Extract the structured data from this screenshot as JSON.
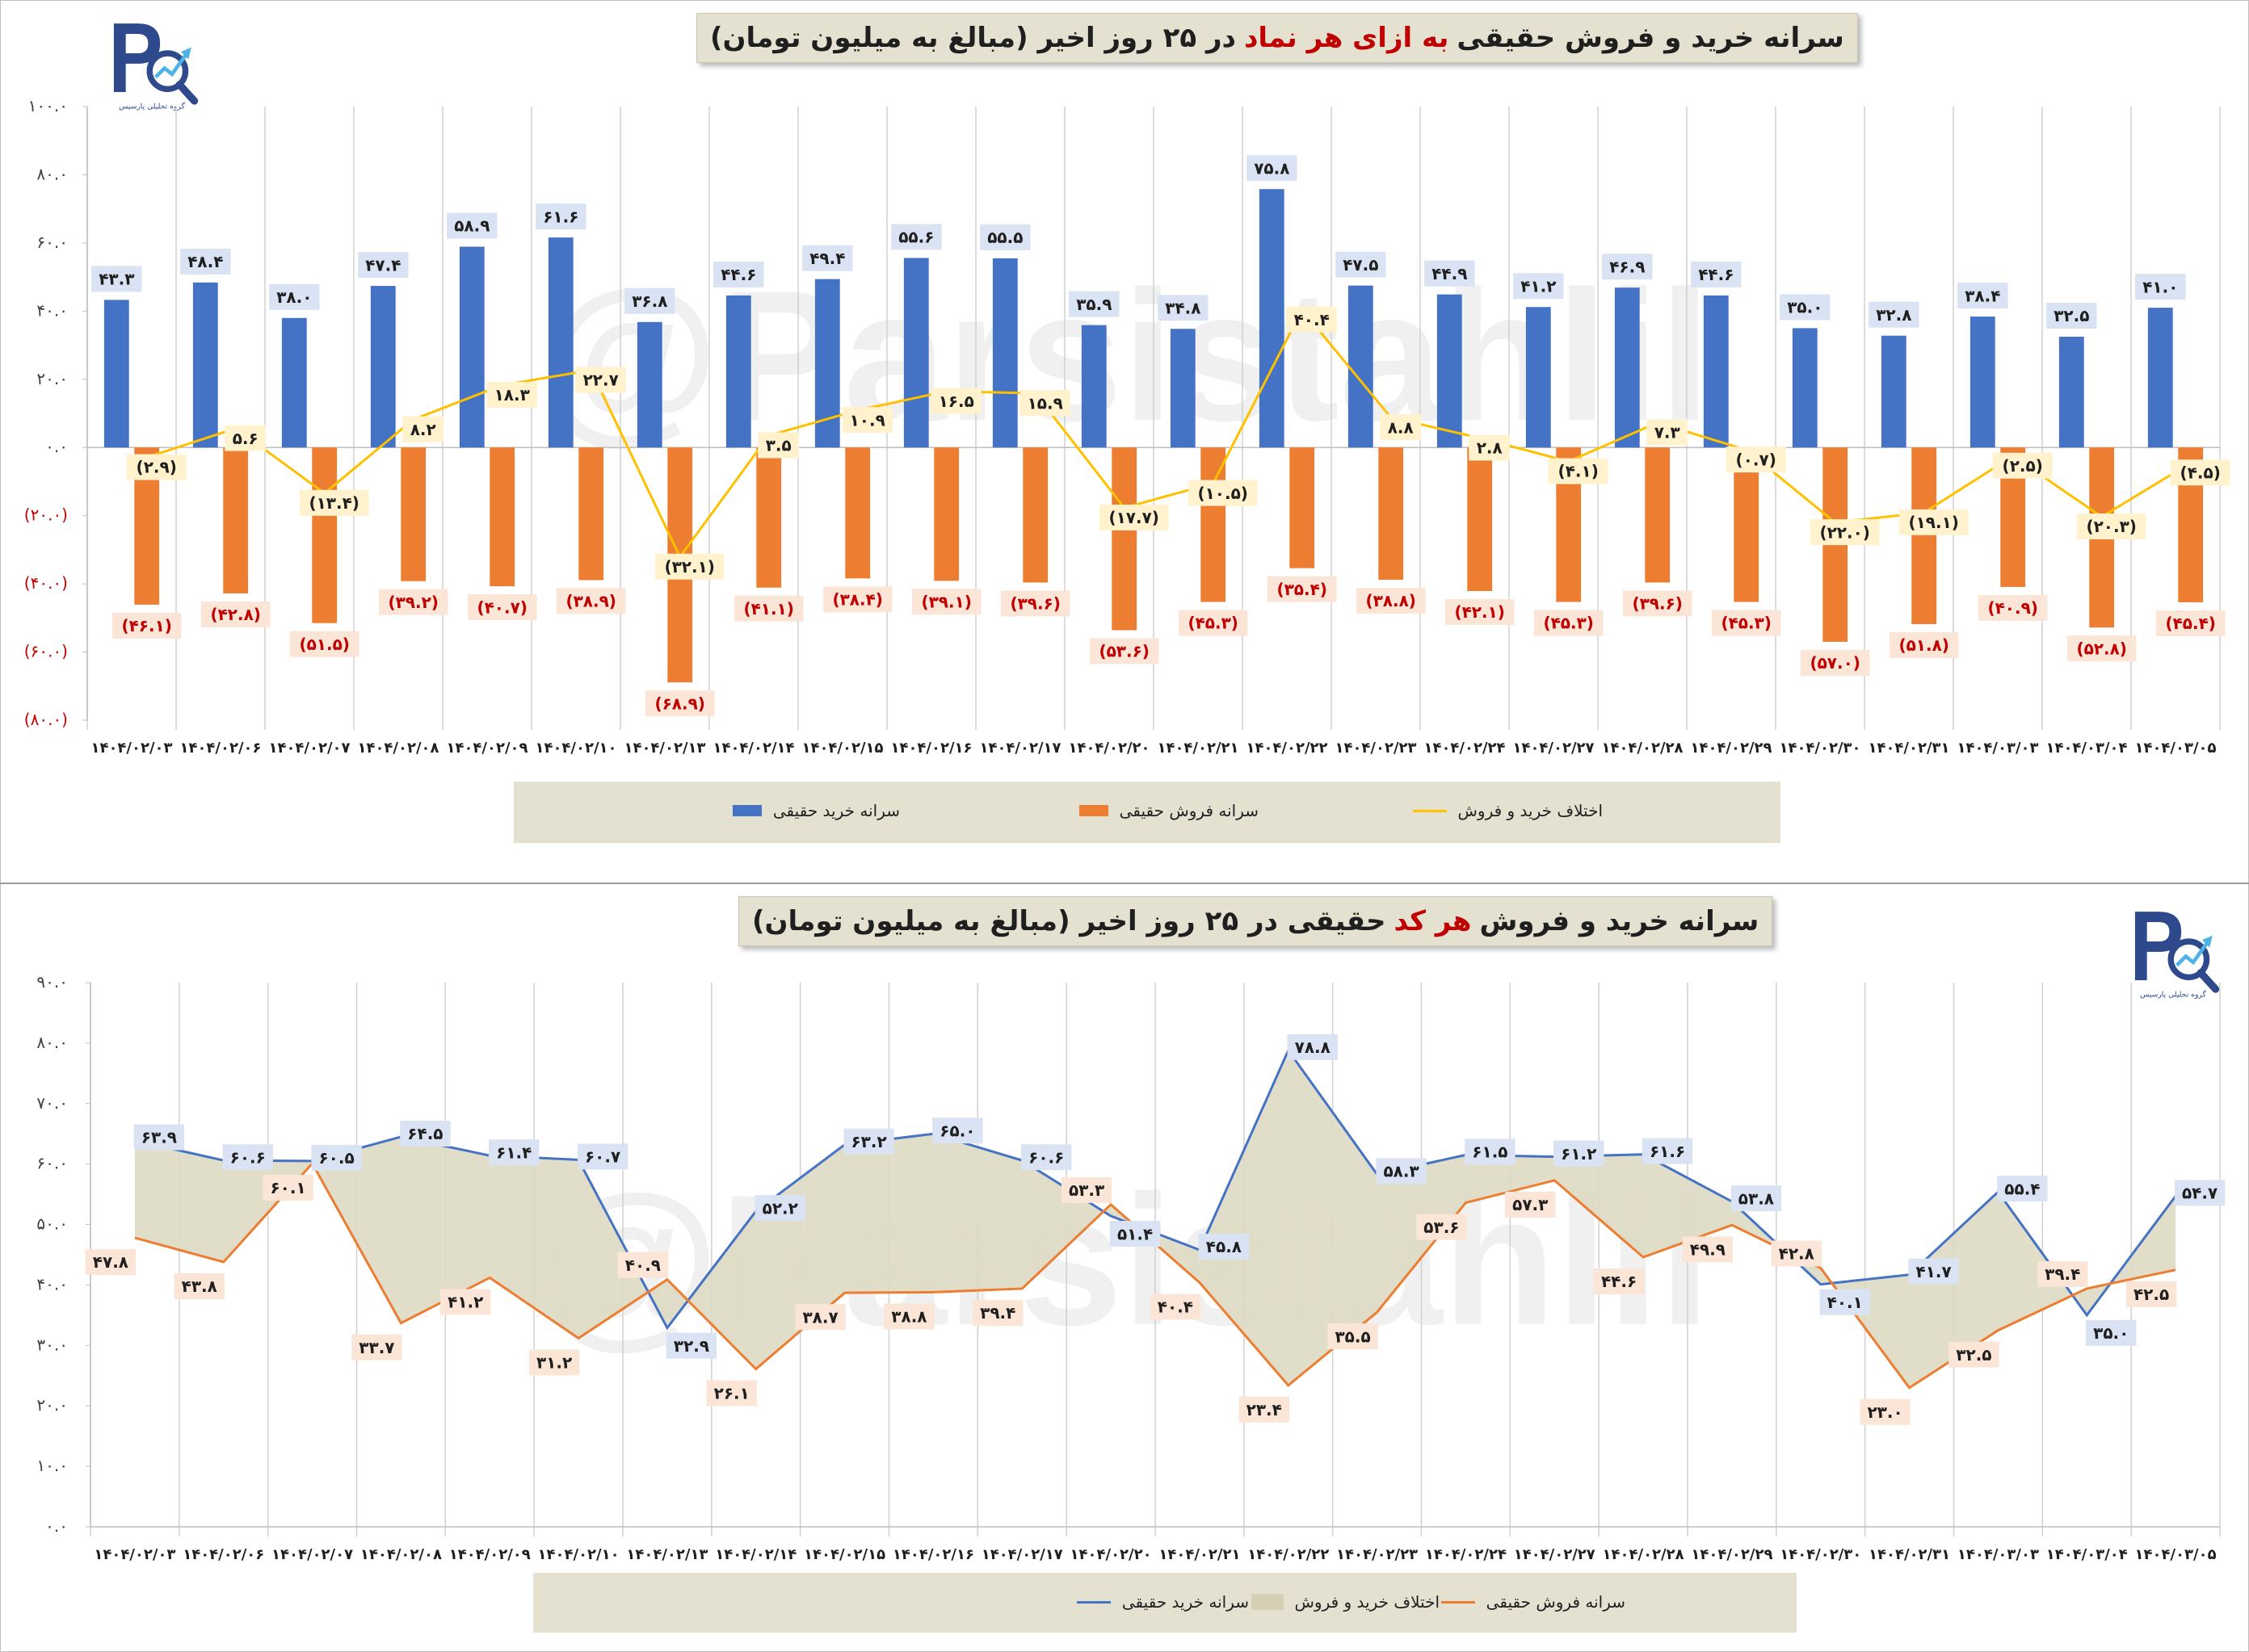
{
  "dates": [
    "۱۴۰۴/۰۲/۰۳",
    "۱۴۰۴/۰۲/۰۶",
    "۱۴۰۴/۰۲/۰۷",
    "۱۴۰۴/۰۲/۰۸",
    "۱۴۰۴/۰۲/۰۹",
    "۱۴۰۴/۰۲/۱۰",
    "۱۴۰۴/۰۲/۱۳",
    "۱۴۰۴/۰۲/۱۴",
    "۱۴۰۴/۰۲/۱۵",
    "۱۴۰۴/۰۲/۱۶",
    "۱۴۰۴/۰۲/۱۷",
    "۱۴۰۴/۰۲/۲۰",
    "۱۴۰۴/۰۲/۲۱",
    "۱۴۰۴/۰۲/۲۲",
    "۱۴۰۴/۰۲/۲۳",
    "۱۴۰۴/۰۲/۲۴",
    "۱۴۰۴/۰۲/۲۷",
    "۱۴۰۴/۰۲/۲۸",
    "۱۴۰۴/۰۲/۲۹",
    "۱۴۰۴/۰۲/۳۰",
    "۱۴۰۴/۰۲/۳۱",
    "۱۴۰۴/۰۳/۰۳",
    "۱۴۰۴/۰۳/۰۴",
    "۱۴۰۴/۰۳/۰۵"
  ],
  "watermark": "@Parsistahlil",
  "logo_text": "گروه تحلیلی پارسیس",
  "colors": {
    "buy": "#4472c4",
    "sell": "#ed7d31",
    "diff": "#ffc000",
    "area": "#ddd9c3",
    "label_box": "#dae3f3",
    "diff_box": "#fff2cc",
    "sell_box": "#fbe5d6",
    "sell_text": "#c00000",
    "neg_tick": "#c00000"
  },
  "chart1": {
    "title_parts": [
      "سرانه خرید و فروش حقیقی",
      "به ازای هر نماد",
      "در ۲۵ روز اخیر (مبالغ به میلیون تومان)"
    ],
    "legend": [
      "سرانه خرید حقیقی",
      "سرانه فروش حقیقی",
      "اختلاف خرید و فروش"
    ]
  },
  "chart2": {
    "title_parts": [
      "سرانه خرید و فروش",
      "هر کد",
      "حقیقی در ۲۵ روز اخیر (مبالغ به میلیون تومان)"
    ],
    "legend": [
      "اختلاف خرید و فروش",
      "سرانه خرید حقیقی",
      "سرانه فروش حقیقی"
    ]
  },
  "chart_data": [
    {
      "type": "bar",
      "title": "سرانه خرید و فروش حقیقی به ازای هر نماد در ۲۵ روز اخیر (مبالغ به میلیون تومان)",
      "ylim": [
        -80,
        100
      ],
      "y_ticks": [
        -80,
        -60,
        -40,
        -20,
        0,
        20,
        40,
        60,
        80,
        100
      ],
      "y_tick_labels": [
        "(۸۰.۰)",
        "(۶۰.۰)",
        "(۴۰.۰)",
        "(۲۰.۰)",
        "۰.۰",
        "۲۰.۰",
        "۴۰.۰",
        "۶۰.۰",
        "۸۰.۰",
        "۱۰۰.۰"
      ],
      "grid": "vertical",
      "legend_position": "bottom",
      "series": [
        {
          "name": "سرانه خرید حقیقی",
          "kind": "bar",
          "values": [
            43.3,
            48.4,
            38.0,
            47.4,
            58.9,
            61.6,
            36.8,
            44.6,
            49.4,
            55.6,
            55.5,
            35.9,
            34.8,
            75.8,
            47.5,
            44.9,
            41.2,
            46.9,
            44.6,
            35.0,
            32.8,
            38.4,
            32.5,
            41.0
          ],
          "labels": [
            "۴۳.۳",
            "۴۸.۴",
            "۳۸.۰",
            "۴۷.۴",
            "۵۸.۹",
            "۶۱.۶",
            "۳۶.۸",
            "۴۴.۶",
            "۴۹.۴",
            "۵۵.۶",
            "۵۵.۵",
            "۳۵.۹",
            "۳۴.۸",
            "۷۵.۸",
            "۴۷.۵",
            "۴۴.۹",
            "۴۱.۲",
            "۴۶.۹",
            "۴۴.۶",
            "۳۵.۰",
            "۳۲.۸",
            "۳۸.۴",
            "۳۲.۵",
            "۴۱.۰"
          ]
        },
        {
          "name": "سرانه فروش حقیقی",
          "kind": "bar",
          "values": [
            -46.1,
            -42.8,
            -51.5,
            -39.2,
            -40.7,
            -38.9,
            -68.9,
            -41.1,
            -38.4,
            -39.1,
            -39.6,
            -53.6,
            -45.3,
            -35.4,
            -38.8,
            -42.1,
            -45.3,
            -39.6,
            -45.3,
            -57.0,
            -51.8,
            -40.9,
            -52.8,
            -45.4
          ],
          "labels": [
            "(۴۶.۱)",
            "(۴۲.۸)",
            "(۵۱.۵)",
            "(۳۹.۲)",
            "(۴۰.۷)",
            "(۳۸.۹)",
            "(۶۸.۹)",
            "(۴۱.۱)",
            "(۳۸.۴)",
            "(۳۹.۱)",
            "(۳۹.۶)",
            "(۵۳.۶)",
            "(۴۵.۳)",
            "(۳۵.۴)",
            "(۳۸.۸)",
            "(۴۲.۱)",
            "(۴۵.۳)",
            "(۳۹.۶)",
            "(۴۵.۳)",
            "(۵۷.۰)",
            "(۵۱.۸)",
            "(۴۰.۹)",
            "(۵۲.۸)",
            "(۴۵.۴)"
          ]
        },
        {
          "name": "اختلاف خرید و فروش",
          "kind": "line",
          "values": [
            -2.9,
            5.6,
            -13.4,
            8.2,
            18.3,
            22.7,
            -32.1,
            3.5,
            10.9,
            16.5,
            15.9,
            -17.7,
            -10.5,
            40.4,
            8.8,
            2.8,
            -4.1,
            7.3,
            -0.7,
            -22.0,
            -19.1,
            -2.5,
            -20.3,
            -4.5
          ],
          "labels": [
            "(۲.۹)",
            "۵.۶",
            "(۱۳.۴)",
            "۸.۲",
            "۱۸.۳",
            "۲۲.۷",
            "(۳۲.۱)",
            "۳.۵",
            "۱۰.۹",
            "۱۶.۵",
            "۱۵.۹",
            "(۱۷.۷)",
            "(۱۰.۵)",
            "۴۰.۴",
            "۸.۸",
            "۲.۸",
            "(۴.۱)",
            "۷.۳",
            "(۰.۷)",
            "(۲۲.۰)",
            "(۱۹.۱)",
            "(۲.۵)",
            "(۲۰.۳)",
            "(۴.۵)"
          ]
        }
      ]
    },
    {
      "type": "line",
      "title": "سرانه خرید و فروش هر کد حقیقی در ۲۵ روز اخیر (مبالغ به میلیون تومان)",
      "ylim": [
        0,
        90
      ],
      "y_ticks": [
        0,
        10,
        20,
        30,
        40,
        50,
        60,
        70,
        80,
        90
      ],
      "y_tick_labels": [
        "۰.۰",
        "۱۰.۰",
        "۲۰.۰",
        "۳۰.۰",
        "۴۰.۰",
        "۵۰.۰",
        "۶۰.۰",
        "۷۰.۰",
        "۸۰.۰",
        "۹۰.۰"
      ],
      "grid": "vertical",
      "legend_position": "bottom",
      "series": [
        {
          "name": "سرانه خرید حقیقی",
          "values": [
            63.9,
            60.6,
            60.5,
            64.5,
            61.4,
            60.7,
            32.9,
            52.2,
            63.2,
            65.0,
            60.6,
            51.4,
            45.8,
            78.8,
            58.3,
            61.5,
            61.2,
            61.6,
            53.8,
            40.1,
            41.7,
            55.4,
            35.0,
            54.7
          ],
          "labels": [
            "۶۳.۹",
            "۶۰.۶",
            "۶۰.۵",
            "۶۴.۵",
            "۶۱.۴",
            "۶۰.۷",
            "۳۲.۹",
            "۵۲.۲",
            "۶۳.۲",
            "۶۵.۰",
            "۶۰.۶",
            "۵۱.۴",
            "۴۵.۸",
            "۷۸.۸",
            "۵۸.۳",
            "۶۱.۵",
            "۶۱.۲",
            "۶۱.۶",
            "۵۳.۸",
            "۴۰.۱",
            "۴۱.۷",
            "۵۵.۴",
            "۳۵.۰",
            "۵۴.۷"
          ]
        },
        {
          "name": "سرانه فروش حقیقی",
          "values": [
            47.8,
            43.8,
            60.1,
            33.7,
            41.2,
            31.2,
            40.9,
            26.1,
            38.7,
            38.8,
            39.4,
            53.3,
            40.4,
            23.4,
            35.5,
            53.6,
            57.3,
            44.6,
            49.9,
            42.8,
            23.0,
            32.5,
            39.4,
            42.5
          ],
          "labels": [
            "۴۷.۸",
            "۴۳.۸",
            "۶۰.۱",
            "۳۳.۷",
            "۴۱.۲",
            "۳۱.۲",
            "۴۰.۹",
            "۲۶.۱",
            "۳۸.۷",
            "۳۸.۸",
            "۳۹.۴",
            "۵۳.۳",
            "۴۰.۴",
            "۲۳.۴",
            "۳۵.۵",
            "۵۳.۶",
            "۵۷.۳",
            "۴۴.۶",
            "۴۹.۹",
            "۴۲.۸",
            "۲۳.۰",
            "۳۲.۵",
            "۳۹.۴",
            "۴۲.۵"
          ]
        }
      ],
      "area": "اختلاف خرید و فروش"
    }
  ]
}
